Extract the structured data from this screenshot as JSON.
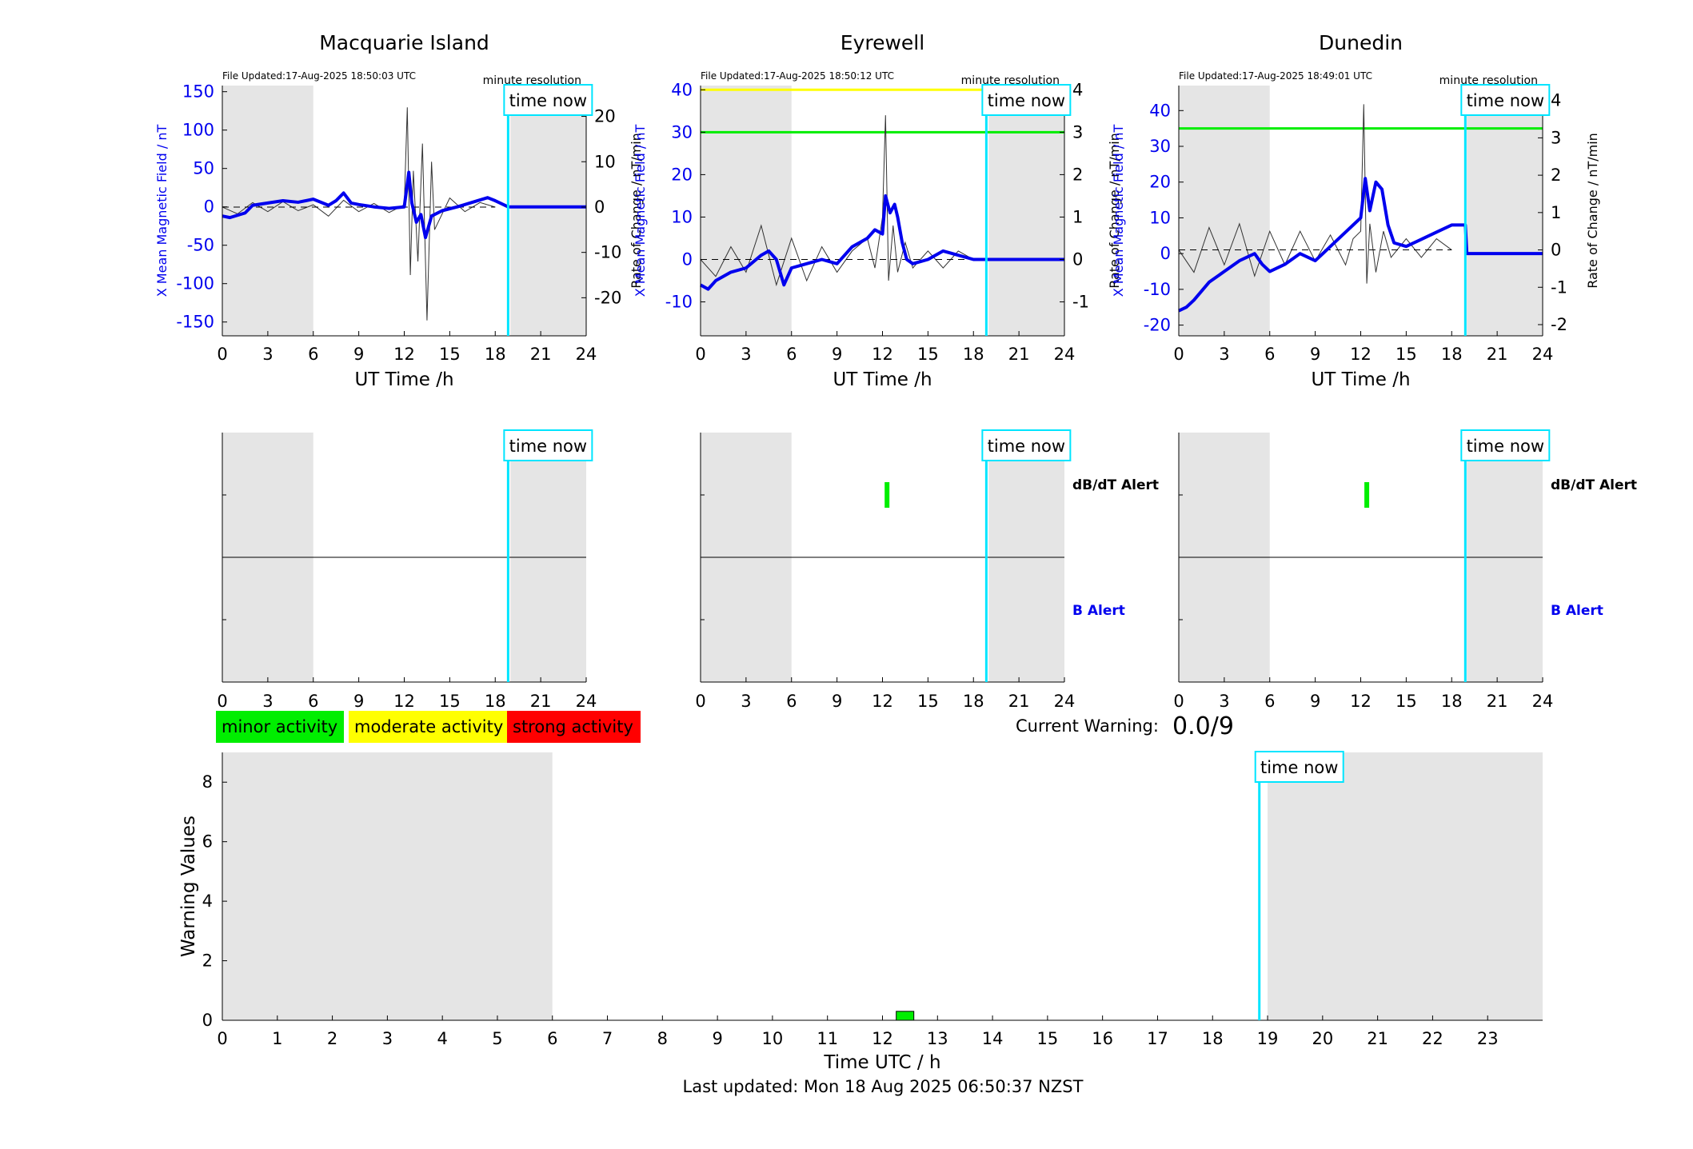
{
  "stations": [
    {
      "name": "Macquarie Island",
      "file_updated": "File Updated:17-Aug-2025 18:50:03 UTC",
      "resolution": "minute resolution",
      "left_axis_label": "X Mean Magnetic Field / nT",
      "right_axis_label": "Rate of Change / nT/min",
      "left_ticks": [
        "150",
        "100",
        "50",
        "0",
        "-50",
        "-100",
        "-150"
      ],
      "right_ticks": [
        "20",
        "10",
        "0",
        "-10",
        "-20"
      ],
      "dbdt_alert_label": "",
      "b_alert_label": "",
      "dbdt_alert_marks": []
    },
    {
      "name": "Eyrewell",
      "file_updated": "File Updated:17-Aug-2025 18:50:12 UTC",
      "resolution": "minute resolution",
      "left_axis_label": "X Mean Magnetic Field / nT",
      "right_axis_label": "Rate of Change / nT/min",
      "left_ticks": [
        "40",
        "30",
        "20",
        "10",
        "0",
        "-10"
      ],
      "right_ticks": [
        "4",
        "3",
        "2",
        "1",
        "0",
        "-1"
      ],
      "dbdt_alert_label": "dB/dT Alert",
      "b_alert_label": "B Alert",
      "dbdt_alert_marks": [
        12.3
      ]
    },
    {
      "name": "Dunedin",
      "file_updated": "File Updated:17-Aug-2025 18:49:01 UTC",
      "resolution": "minute resolution",
      "left_axis_label": "X Mean Magnetic Field / nT",
      "right_axis_label": "Rate of Change / nT/min",
      "left_ticks": [
        "40",
        "30",
        "20",
        "10",
        "0",
        "-10",
        "-20"
      ],
      "right_ticks": [
        "4",
        "3",
        "2",
        "1",
        "0",
        "-1",
        "-2"
      ],
      "dbdt_alert_label": "dB/dT Alert",
      "b_alert_label": "B Alert",
      "dbdt_alert_marks": [
        12.4
      ]
    }
  ],
  "x_axis_label": "UT Time /h",
  "x_ticks": [
    "0",
    "3",
    "6",
    "9",
    "12",
    "15",
    "18",
    "21",
    "24"
  ],
  "time_now_label": "time now",
  "legend": {
    "minor": "minor activity",
    "moderate": "moderate activity",
    "strong": "strong activity"
  },
  "current_warning_label": "Current Warning:",
  "current_warning_value": "0.0/9",
  "warning_chart": {
    "y_label": "Warning Values",
    "x_label": "Time UTC / h",
    "y_ticks": [
      "0",
      "2",
      "4",
      "6",
      "8"
    ],
    "x_ticks": [
      "0",
      "1",
      "2",
      "3",
      "4",
      "5",
      "6",
      "7",
      "8",
      "9",
      "10",
      "11",
      "12",
      "13",
      "14",
      "15",
      "16",
      "17",
      "18",
      "19",
      "20",
      "21",
      "22",
      "23"
    ]
  },
  "last_updated": "Last updated: Mon 18 Aug 2025 06:50:37 NZST",
  "colors": {
    "field": "#0000ee",
    "rate": "#333333",
    "time_now": "#00e5ff",
    "night": "#e5e5e5",
    "minor": "#00ee00",
    "moderate": "#ffff00",
    "strong": "#ff0000"
  },
  "chart_data": [
    {
      "type": "line",
      "title": "Macquarie Island",
      "xlabel": "UT Time /h",
      "ylabel": "X Mean Magnetic Field / nT",
      "ylabel_right": "Rate of Change / nT/min",
      "xlim": [
        0,
        24
      ],
      "ylim": [
        -168,
        158
      ],
      "ylim_right": [
        -28.4,
        26.8
      ],
      "time_now": 18.85,
      "night": [
        [
          0,
          6
        ],
        [
          19,
          24
        ]
      ],
      "series": [
        {
          "name": "X Mean Magnetic Field / nT",
          "axis": "left",
          "x": [
            0,
            0.5,
            1.5,
            2,
            3,
            4,
            5,
            6,
            7,
            7.5,
            8,
            8.5,
            9,
            10,
            11,
            12,
            12.3,
            12.5,
            12.8,
            13.1,
            13.4,
            13.8,
            14.5,
            15.5,
            16.5,
            17.5,
            18,
            18.85,
            19,
            24
          ],
          "y": [
            -12,
            -14,
            -8,
            2,
            5,
            8,
            6,
            10,
            2,
            8,
            18,
            5,
            3,
            0,
            -2,
            0,
            45,
            5,
            -20,
            -10,
            -40,
            -12,
            -5,
            0,
            6,
            12,
            8,
            0,
            0,
            0
          ]
        },
        {
          "name": "Rate of Change / nT/min",
          "axis": "right",
          "x": [
            0,
            1,
            2,
            3,
            4,
            5,
            6,
            7,
            8,
            9,
            10,
            11,
            12,
            12.2,
            12.4,
            12.6,
            12.9,
            13.2,
            13.5,
            13.8,
            14,
            15,
            16,
            17,
            18
          ],
          "y": [
            0,
            -1.5,
            1,
            -1,
            1.2,
            -0.8,
            0.5,
            -2,
            1.5,
            -1,
            0.8,
            -1.2,
            0.5,
            22,
            -15,
            8,
            -12,
            14,
            -25,
            10,
            -5,
            2,
            -1,
            1,
            0
          ]
        }
      ],
      "thresholds": []
    },
    {
      "type": "line",
      "title": "Eyrewell",
      "xlabel": "UT Time /h",
      "ylabel": "X Mean Magnetic Field / nT",
      "ylabel_right": "Rate of Change / nT/min",
      "xlim": [
        0,
        24
      ],
      "ylim": [
        -18,
        41
      ],
      "ylim_right": [
        -1.8,
        4.1
      ],
      "time_now": 18.85,
      "night": [
        [
          0,
          6
        ],
        [
          19,
          24
        ]
      ],
      "thresholds": [
        {
          "y": 40,
          "color": "#ffff00"
        },
        {
          "y": 30,
          "color": "#00ee00"
        }
      ],
      "series": [
        {
          "name": "X Mean Magnetic Field / nT",
          "axis": "left",
          "x": [
            0,
            0.5,
            1,
            2,
            3,
            4,
            4.5,
            5,
            5.5,
            6,
            7,
            8,
            9,
            10,
            11,
            11.5,
            12,
            12.2,
            12.5,
            12.8,
            13,
            13.3,
            13.6,
            14,
            15,
            16,
            17,
            18,
            18.85,
            19,
            24
          ],
          "y": [
            -6,
            -7,
            -5,
            -3,
            -2,
            1,
            2,
            0,
            -6,
            -2,
            -1,
            0,
            -1,
            3,
            5,
            7,
            6,
            15,
            11,
            13,
            10,
            4,
            0,
            -1,
            0,
            2,
            1,
            0,
            0,
            0,
            0
          ]
        },
        {
          "name": "Rate of Change / nT/min",
          "axis": "right",
          "x": [
            0,
            1,
            2,
            3,
            4,
            5,
            6,
            7,
            8,
            9,
            10,
            11,
            11.5,
            12,
            12.2,
            12.4,
            12.7,
            13,
            13.5,
            14,
            15,
            16,
            17,
            18
          ],
          "y": [
            0,
            -0.4,
            0.3,
            -0.3,
            0.8,
            -0.6,
            0.5,
            -0.5,
            0.3,
            -0.3,
            0.2,
            0.5,
            -0.2,
            1,
            3.4,
            -0.5,
            0.8,
            -0.3,
            0.4,
            -0.2,
            0.2,
            -0.2,
            0.2,
            0
          ]
        }
      ]
    },
    {
      "type": "line",
      "title": "Dunedin",
      "xlabel": "UT Time /h",
      "ylabel": "X Mean Magnetic Field / nT",
      "ylabel_right": "Rate of Change / nT/min",
      "xlim": [
        0,
        24
      ],
      "ylim": [
        -23,
        47
      ],
      "ylim_right": [
        -2.3,
        4.4
      ],
      "time_now": 18.9,
      "night": [
        [
          0,
          6
        ],
        [
          19,
          24
        ]
      ],
      "thresholds": [
        {
          "y": 35,
          "color": "#00ee00"
        }
      ],
      "series": [
        {
          "name": "X Mean Magnetic Field / nT",
          "axis": "left",
          "x": [
            0,
            0.5,
            1,
            2,
            3,
            4,
            5,
            5.5,
            6,
            7,
            8,
            9,
            10,
            11,
            11.5,
            12,
            12.3,
            12.6,
            13,
            13.4,
            13.8,
            14.2,
            15,
            16,
            17,
            18,
            18.9,
            19,
            24
          ],
          "y": [
            -16,
            -15,
            -13,
            -8,
            -5,
            -2,
            0,
            -3,
            -5,
            -3,
            0,
            -2,
            2,
            6,
            8,
            10,
            21,
            12,
            20,
            18,
            8,
            3,
            2,
            4,
            6,
            8,
            8,
            0,
            0
          ]
        },
        {
          "name": "Rate of Change / nT/min",
          "axis": "right",
          "x": [
            0,
            1,
            2,
            3,
            4,
            5,
            6,
            7,
            8,
            9,
            10,
            11,
            11.5,
            12,
            12.2,
            12.4,
            12.6,
            13,
            13.5,
            14,
            15,
            16,
            17,
            18
          ],
          "y": [
            0,
            -0.6,
            0.6,
            -0.4,
            0.7,
            -0.7,
            0.5,
            -0.4,
            0.5,
            -0.3,
            0.4,
            -0.4,
            0.3,
            0.5,
            3.9,
            -0.9,
            0.7,
            -0.6,
            0.5,
            -0.2,
            0.3,
            -0.2,
            0.3,
            0
          ]
        }
      ]
    },
    {
      "type": "bar",
      "title": "",
      "xlabel": "Time UTC / h",
      "ylabel": "Warning Values",
      "xlim": [
        0,
        24
      ],
      "ylim": [
        0,
        9
      ],
      "time_now": 18.85,
      "night": [
        [
          0,
          6
        ],
        [
          19,
          24
        ]
      ],
      "x": [
        12.25
      ],
      "values": [
        0.3
      ]
    }
  ]
}
